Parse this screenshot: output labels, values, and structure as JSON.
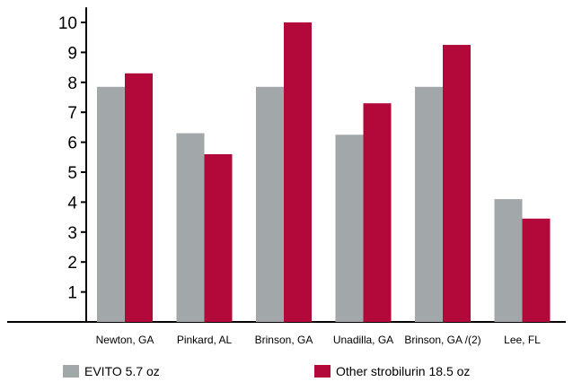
{
  "chart_data": {
    "type": "bar",
    "categories": [
      "Newton, GA",
      "Pinkard, AL",
      "Brinson, GA",
      "Unadilla, GA",
      "Brinson, GA /(2)",
      "Lee, FL"
    ],
    "series": [
      {
        "name": "EVITO 5.7 oz",
        "values": [
          7.85,
          6.3,
          7.85,
          6.25,
          7.85,
          4.1
        ],
        "color": "#a2a8aa"
      },
      {
        "name": "Other strobilurin 18.5 oz",
        "values": [
          8.3,
          5.6,
          10.0,
          7.3,
          9.25,
          3.45
        ],
        "color": "#b3093a"
      }
    ],
    "yticks": [
      1,
      2,
      3,
      4,
      5,
      6,
      7,
      8,
      9,
      10
    ],
    "ylim": [
      0,
      10.5
    ],
    "grid": false,
    "legend_position": "bottom"
  }
}
